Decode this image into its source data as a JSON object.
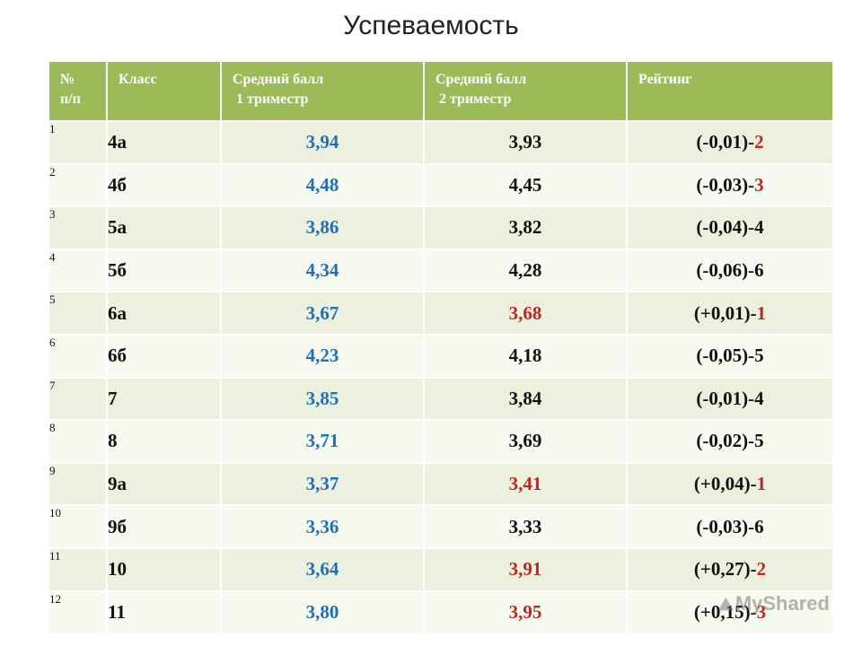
{
  "title": "Успеваемость",
  "colors": {
    "header": "#9bbb59",
    "tri1": "#1f6fb8",
    "highlight": "#c0271f"
  },
  "table": {
    "headers": [
      {
        "line1": "№",
        "line2": "п/п"
      },
      {
        "line1": "Класс",
        "line2": ""
      },
      {
        "line1": "Средний балл",
        "line2": "1 триместр"
      },
      {
        "line1": "Средний балл",
        "line2": "2 триместр"
      },
      {
        "line1": "Рейтинг",
        "line2": ""
      }
    ],
    "rows": [
      {
        "num": "1",
        "cls": "4а",
        "t1": "3,94",
        "t2": "3,93",
        "t2_up": false,
        "delta": "(-0,01)-",
        "rank": "2",
        "rank_red": true
      },
      {
        "num": "2",
        "cls": "4б",
        "t1": "4,48",
        "t2": "4,45",
        "t2_up": false,
        "delta": "(-0,03)-",
        "rank": "3",
        "rank_red": true
      },
      {
        "num": "3",
        "cls": "5а",
        "t1": "3,86",
        "t2": "3,82",
        "t2_up": false,
        "delta": "(-0,04)-",
        "rank": "4",
        "rank_red": false
      },
      {
        "num": "4",
        "cls": "5б",
        "t1": "4,34",
        "t2": "4,28",
        "t2_up": false,
        "delta": "(-0,06)-",
        "rank": "6",
        "rank_red": false
      },
      {
        "num": "5",
        "cls": "6а",
        "t1": "3,67",
        "t2": "3,68",
        "t2_up": true,
        "delta": "(+0,01)-",
        "rank": "1",
        "rank_red": true
      },
      {
        "num": "6",
        "cls": "6б",
        "t1": "4,23",
        "t2": "4,18",
        "t2_up": false,
        "delta": "(-0,05)-",
        "rank": "5",
        "rank_red": false
      },
      {
        "num": "7",
        "cls": "7",
        "t1": "3,85",
        "t2": "3,84",
        "t2_up": false,
        "delta": "(-0,01)-",
        "rank": "4",
        "rank_red": false
      },
      {
        "num": "8",
        "cls": "8",
        "t1": "3,71",
        "t2": "3,69",
        "t2_up": false,
        "delta": "(-0,02)-",
        "rank": "5",
        "rank_red": false
      },
      {
        "num": "9",
        "cls": "9а",
        "t1": "3,37",
        "t2": "3,41",
        "t2_up": true,
        "delta": "(+0,04)-",
        "rank": "1",
        "rank_red": true
      },
      {
        "num": "10",
        "cls": "9б",
        "t1": "3,36",
        "t2": "3,33",
        "t2_up": false,
        "delta": "(-0,03)-",
        "rank": "6",
        "rank_red": false
      },
      {
        "num": "11",
        "cls": "10",
        "t1": "3,64",
        "t2": "3,91",
        "t2_up": true,
        "delta": "(+0,27)-",
        "rank": "2",
        "rank_red": true
      },
      {
        "num": "12",
        "cls": "11",
        "t1": "3,80",
        "t2": "3,95",
        "t2_up": true,
        "delta": "(+0,15)-",
        "rank": "3",
        "rank_red": true
      }
    ]
  },
  "watermark": {
    "icon": "mysharing-logo-icon",
    "text": "MyShared"
  }
}
